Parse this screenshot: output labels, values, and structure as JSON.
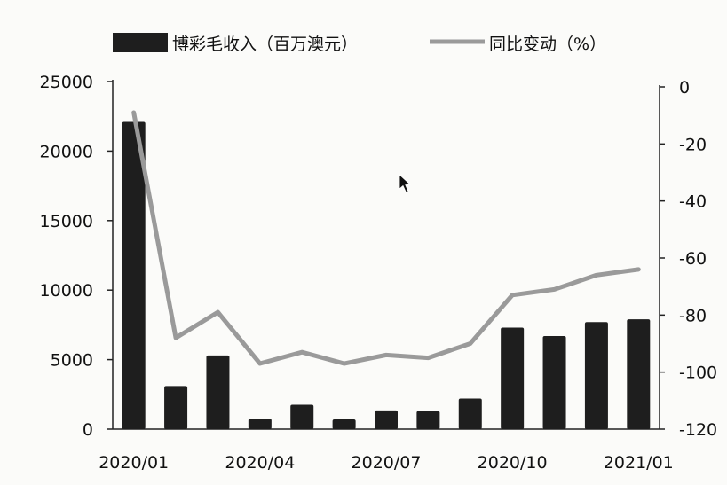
{
  "chart_data": {
    "type": "bar",
    "categories": [
      "2020/01",
      "2020/02",
      "2020/03",
      "2020/04",
      "2020/05",
      "2020/06",
      "2020/07",
      "2020/08",
      "2020/09",
      "2020/10",
      "2020/11",
      "2020/12",
      "2021/01"
    ],
    "series": [
      {
        "name": "博彩毛收入（百万澳元）",
        "type": "bar",
        "axis": "left",
        "values": [
          22100,
          3100,
          5300,
          750,
          1750,
          700,
          1350,
          1300,
          2200,
          7300,
          6700,
          7700,
          7900
        ]
      },
      {
        "name": "同比变动（%）",
        "type": "line",
        "axis": "right",
        "values": [
          -9,
          -88,
          -79,
          -97,
          -93,
          -97,
          -94,
          -95,
          -90,
          -73,
          -71,
          -66,
          -64
        ]
      }
    ],
    "x_tick_labels": [
      "2020/01",
      "2020/04",
      "2020/07",
      "2020/10",
      "2021/01"
    ],
    "y_left": {
      "range": [
        0,
        25000
      ],
      "ticks": [
        "0",
        "5000",
        "10000",
        "15000",
        "20000",
        "25000"
      ]
    },
    "y_right": {
      "range": [
        -120,
        0
      ],
      "ticks": [
        "-120",
        "-100",
        "-80",
        "-60",
        "-40",
        "-20",
        "0"
      ]
    },
    "legend": {
      "position": "top-center"
    },
    "grid": false,
    "colors": {
      "bar": "#1e1e1e",
      "line": "#9a9a9a",
      "axis": "#222222"
    }
  }
}
